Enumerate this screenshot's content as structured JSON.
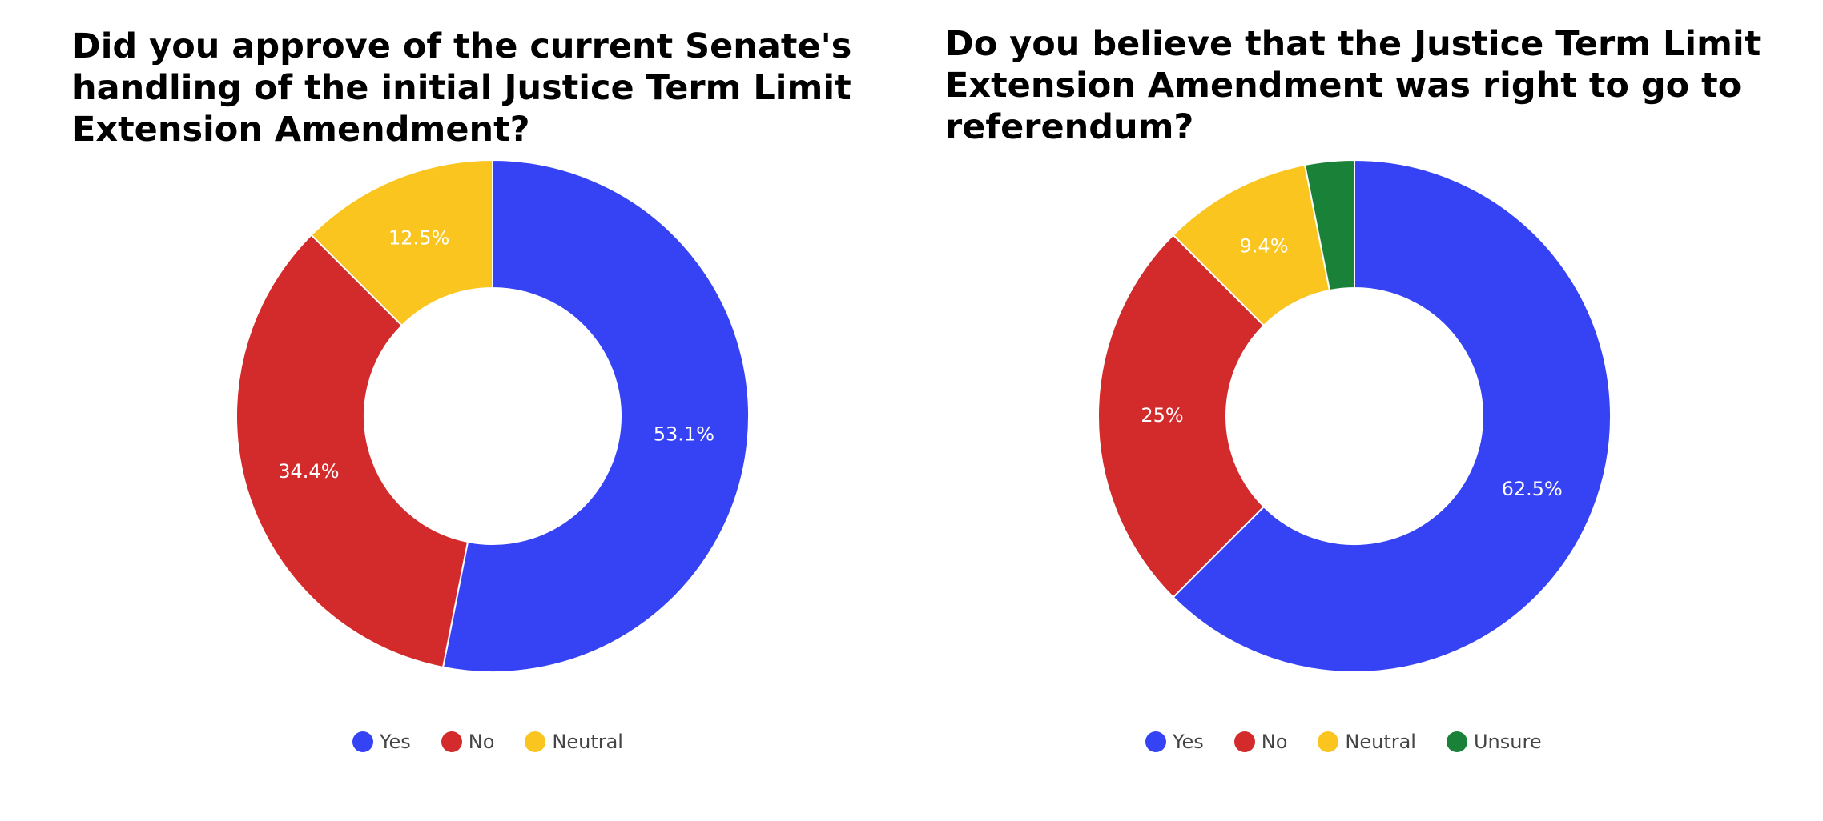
{
  "chart_data": [
    {
      "type": "pie",
      "donut": true,
      "title_lines": [
        "Did you approve of the current Senate's",
        "handling of the initial Justice Term Limit",
        "Extension Amendment?"
      ],
      "labels": [
        "Yes",
        "No",
        "Neutral"
      ],
      "values": [
        53.1,
        34.4,
        12.5
      ],
      "data_labels": [
        "53.1%",
        "34.4%",
        "12.5%"
      ],
      "colors": [
        "#3643f5",
        "#d32b2b",
        "#fbc520"
      ],
      "legend_position": "bottom"
    },
    {
      "type": "pie",
      "donut": true,
      "title_lines": [
        "Do you believe that the Justice Term Limit",
        "Extension Amendment was right to go to",
        "referendum?"
      ],
      "labels": [
        "Yes",
        "No",
        "Neutral",
        "Unsure"
      ],
      "values": [
        62.5,
        25,
        9.4,
        3.1
      ],
      "data_labels": [
        "62.5%",
        "25%",
        "9.4%",
        ""
      ],
      "colors": [
        "#3643f5",
        "#d32b2b",
        "#fbc520",
        "#1a8139"
      ],
      "legend_position": "bottom"
    }
  ]
}
